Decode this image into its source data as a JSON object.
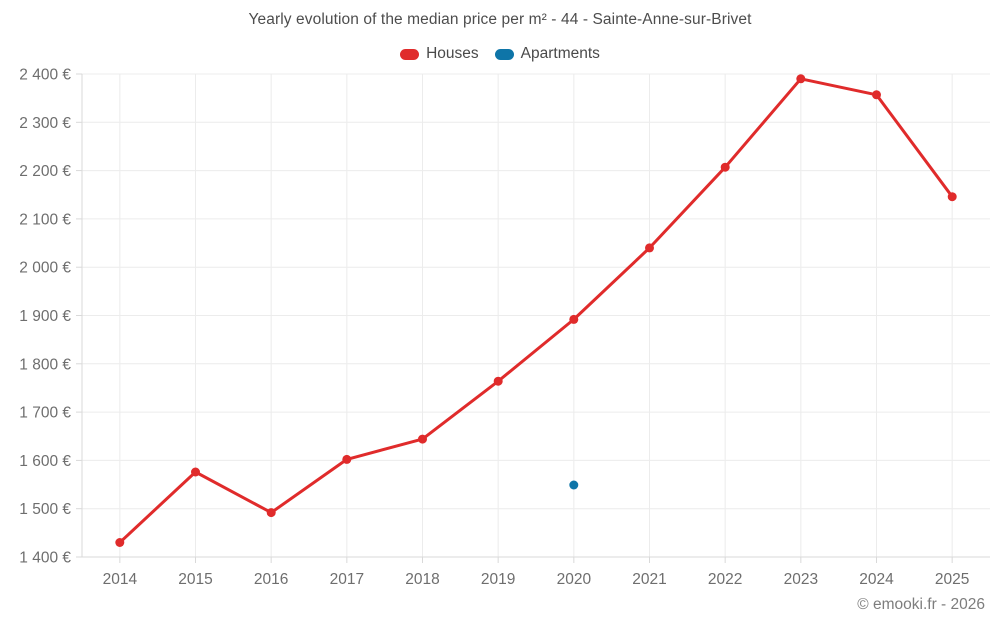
{
  "page": {
    "footer_copyright": "© emooki.fr - 2026"
  },
  "chart_data": {
    "type": "line",
    "title": "Yearly evolution of the median price per m² - 44 - Sainte-Anne-sur-Brivet",
    "xlabel": "",
    "ylabel": "",
    "categories": [
      "2014",
      "2015",
      "2016",
      "2017",
      "2018",
      "2019",
      "2020",
      "2021",
      "2022",
      "2023",
      "2024",
      "2025"
    ],
    "series": [
      {
        "name": "Houses",
        "color": "#e02b2b",
        "values": [
          1430,
          1576,
          1492,
          1602,
          1644,
          1764,
          1892,
          2040,
          2207,
          2390,
          2357,
          2146
        ]
      },
      {
        "name": "Apartments",
        "color": "#0e75a8",
        "values": [
          null,
          null,
          null,
          null,
          null,
          null,
          1549,
          null,
          null,
          null,
          null,
          null
        ]
      }
    ],
    "ylim": [
      1400,
      2400
    ],
    "ytick_step": 100,
    "y_ticks": [
      {
        "value": 1400,
        "label": "1 400 €"
      },
      {
        "value": 1500,
        "label": "1 500 €"
      },
      {
        "value": 1600,
        "label": "1 600 €"
      },
      {
        "value": 1700,
        "label": "1 700 €"
      },
      {
        "value": 1800,
        "label": "1 800 €"
      },
      {
        "value": 1900,
        "label": "1 900 €"
      },
      {
        "value": 2000,
        "label": "2 000 €"
      },
      {
        "value": 2100,
        "label": "2 100 €"
      },
      {
        "value": 2200,
        "label": "2 200 €"
      },
      {
        "value": 2300,
        "label": "2 300 €"
      },
      {
        "value": 2400,
        "label": "2 400 €"
      }
    ],
    "grid": true,
    "legend_position": "top",
    "grid_color": "#ececec",
    "axis_color": "#d9d9d9",
    "tick_label_color": "#6e6e6e"
  }
}
